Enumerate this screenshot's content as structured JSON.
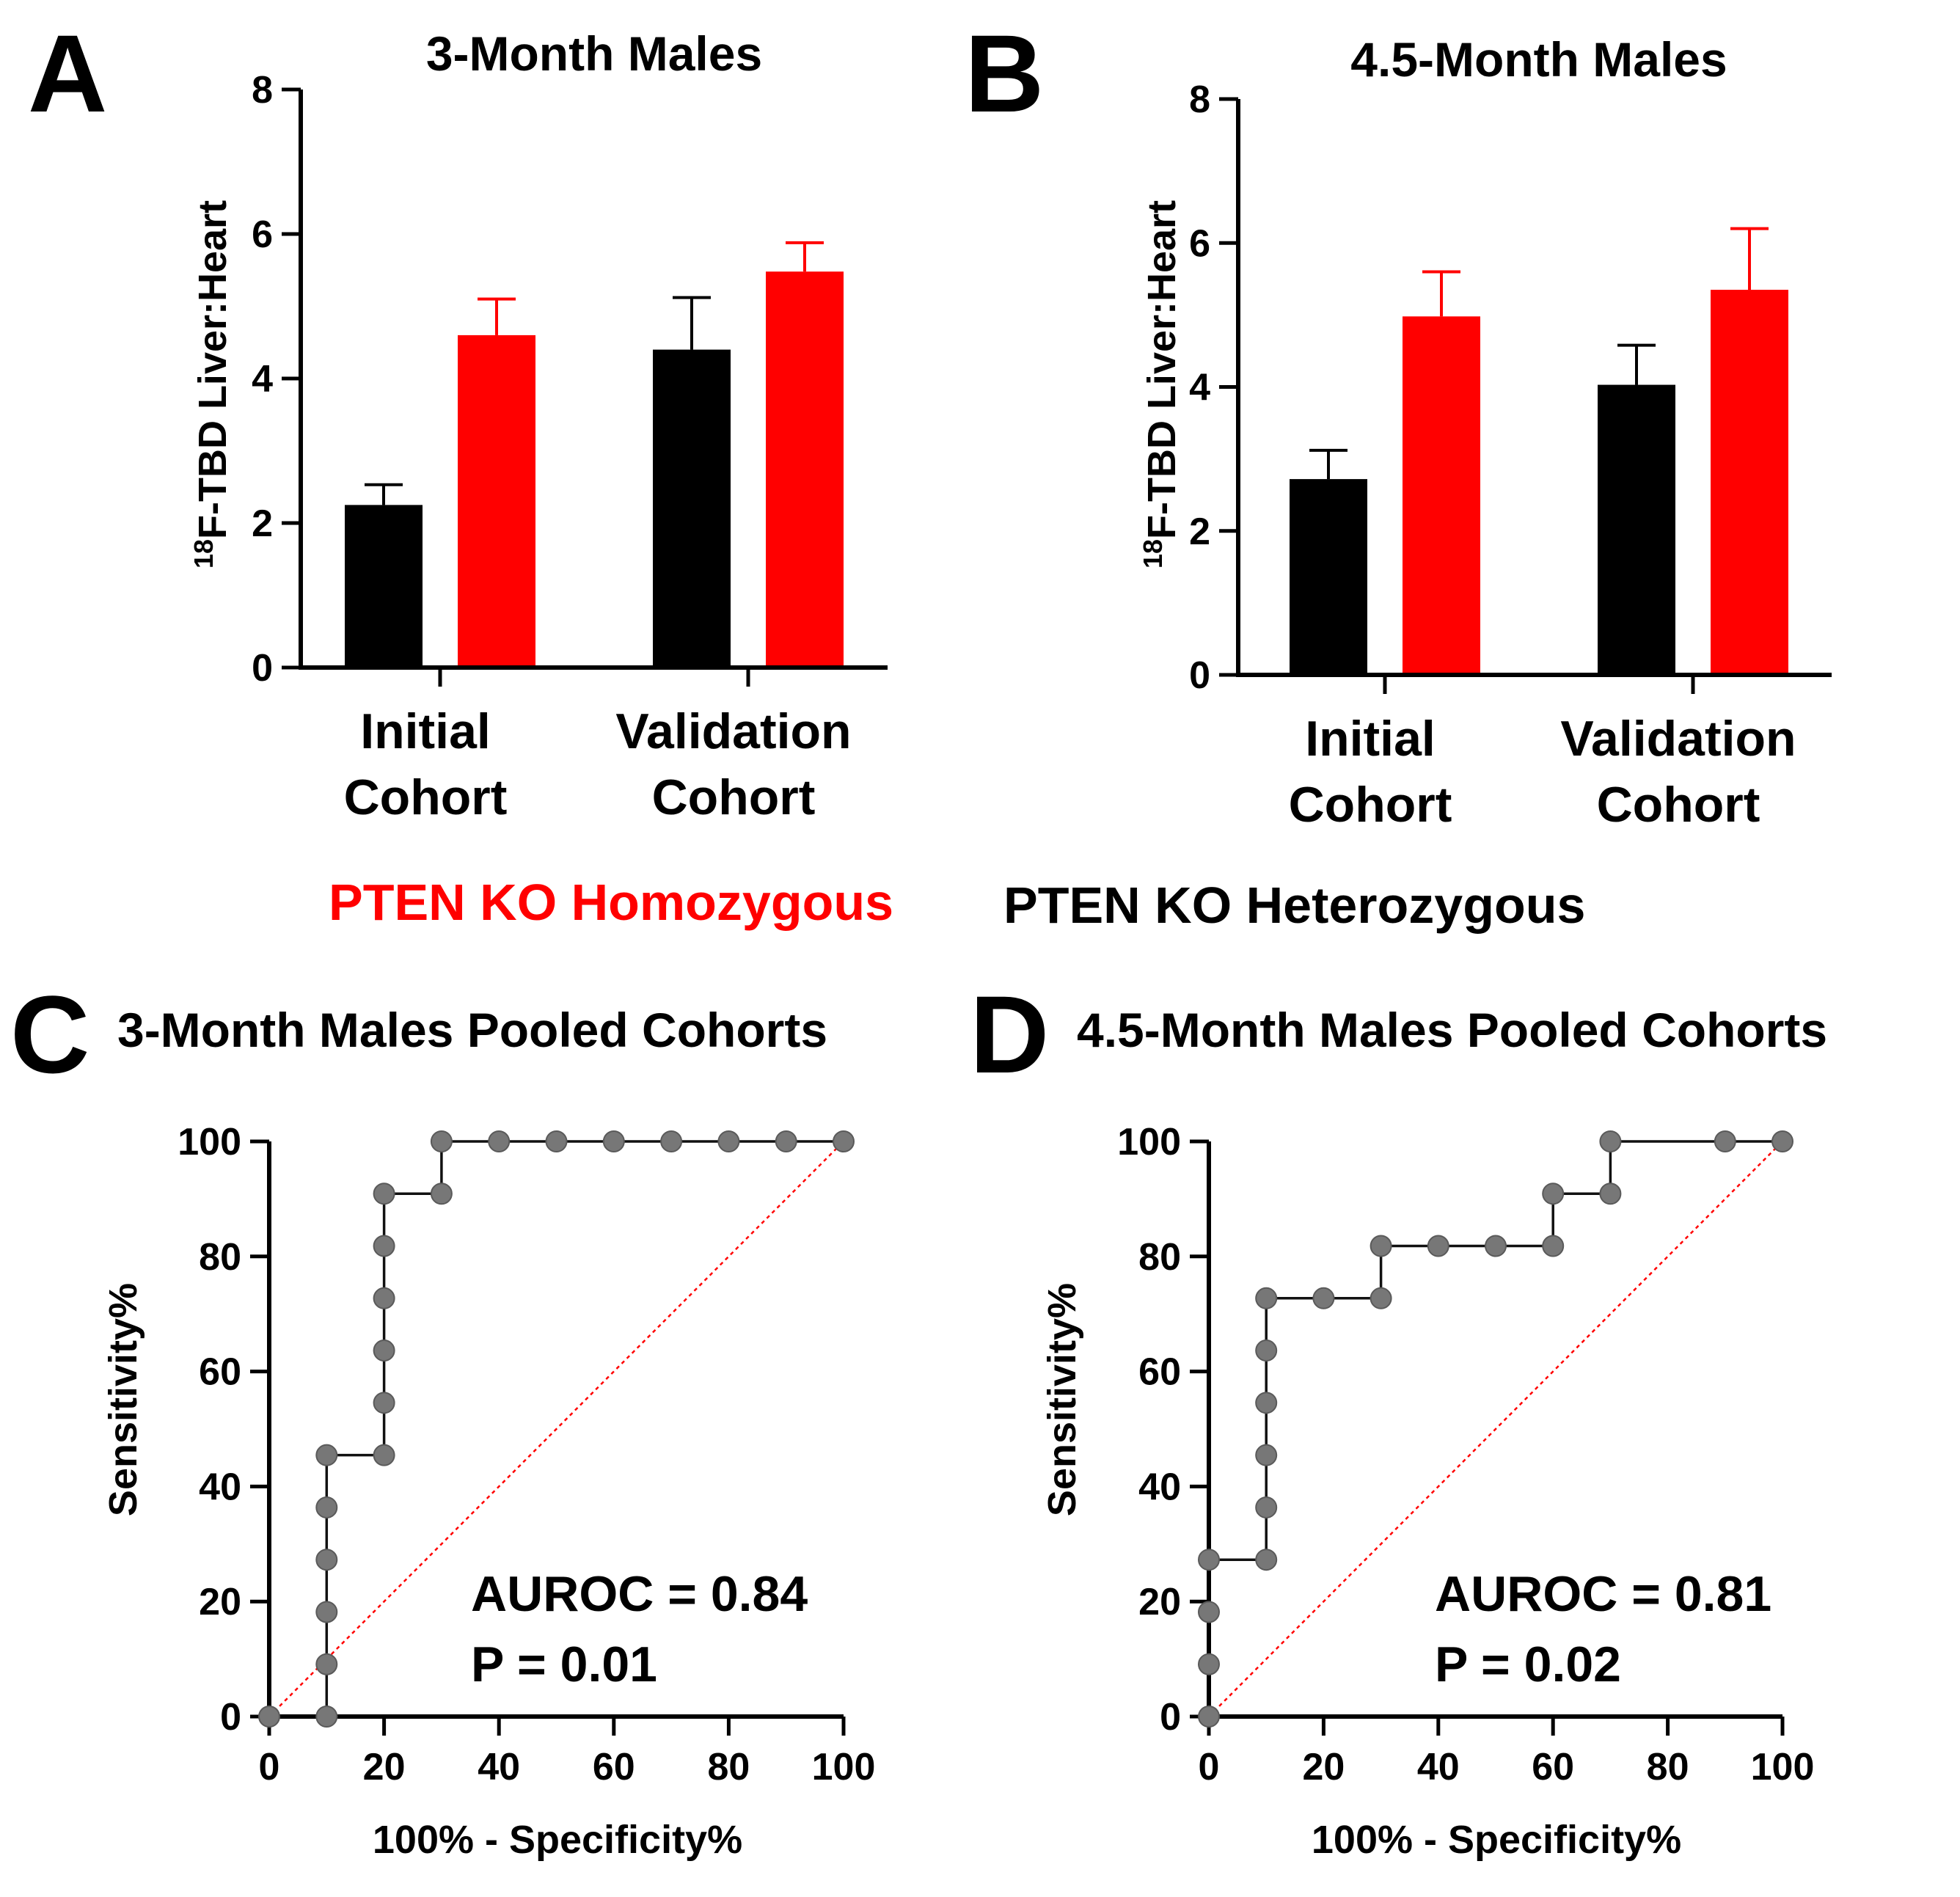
{
  "legend": {
    "homozygous_label": "PTEN KO Homozygous",
    "homozygous_color": "#ff0000",
    "heterozygous_label": "PTEN KO Heterozygous",
    "heterozygous_color": "#000000"
  },
  "chart_data": [
    {
      "panel": "A",
      "type": "bar",
      "title": "3-Month Males",
      "ylabel_sup": "18",
      "ylabel": "F-TBD Liver:Heart",
      "categories": [
        [
          "Initial",
          "Cohort"
        ],
        [
          "Validation",
          "Cohort"
        ]
      ],
      "ylim": [
        0,
        8
      ],
      "yticks": [
        "0",
        "2",
        "4",
        "6",
        "8"
      ],
      "series": [
        {
          "name": "PTEN KO Heterozygous",
          "color": "#000000",
          "values": [
            2.25,
            4.4
          ],
          "errors": [
            0.28,
            0.72
          ]
        },
        {
          "name": "PTEN KO Homozygous",
          "color": "#ff0000",
          "values": [
            4.6,
            5.48
          ],
          "errors": [
            0.5,
            0.4
          ]
        }
      ]
    },
    {
      "panel": "B",
      "type": "bar",
      "title": "4.5-Month Males",
      "ylabel_sup": "18",
      "ylabel": "F-TBD Liver:Heart",
      "categories": [
        [
          "Initial",
          "Cohort"
        ],
        [
          "Validation",
          "Cohort"
        ]
      ],
      "ylim": [
        0,
        8
      ],
      "yticks": [
        "0",
        "2",
        "4",
        "6",
        "8"
      ],
      "series": [
        {
          "name": "PTEN KO Heterozygous",
          "color": "#000000",
          "values": [
            2.72,
            4.03
          ],
          "errors": [
            0.4,
            0.55
          ]
        },
        {
          "name": "PTEN KO Homozygous",
          "color": "#ff0000",
          "values": [
            4.98,
            5.35
          ],
          "errors": [
            0.62,
            0.85
          ]
        }
      ]
    },
    {
      "panel": "C",
      "type": "line",
      "title": "3-Month Males Pooled Cohorts",
      "xlabel": "100% - Specificity%",
      "ylabel": "Sensitivity%",
      "xlim": [
        0,
        100
      ],
      "ylim": [
        0,
        100
      ],
      "xticks": [
        "0",
        "20",
        "40",
        "60",
        "80",
        "100"
      ],
      "yticks": [
        "0",
        "20",
        "40",
        "60",
        "80",
        "100"
      ],
      "roc_x": [
        0,
        10,
        10,
        10,
        10,
        10,
        10,
        20,
        20,
        20,
        20,
        20,
        20,
        30,
        30,
        40,
        50,
        60,
        70,
        80,
        90,
        100
      ],
      "roc_y": [
        0,
        0,
        9.09,
        18.18,
        27.27,
        36.36,
        45.45,
        45.45,
        54.55,
        63.64,
        72.73,
        81.82,
        90.91,
        90.91,
        100,
        100,
        100,
        100,
        100,
        100,
        100,
        100
      ],
      "reference_line": {
        "x": [
          0,
          100
        ],
        "y": [
          0,
          100
        ],
        "color": "#ff0000"
      },
      "annotation": [
        "AUROC = 0.84",
        "P = 0.01"
      ]
    },
    {
      "panel": "D",
      "type": "line",
      "title": "4.5-Month Males Pooled Cohorts",
      "xlabel": "100% - Specificity%",
      "ylabel": "Sensitivity%",
      "xlim": [
        0,
        100
      ],
      "ylim": [
        0,
        100
      ],
      "xticks": [
        "0",
        "20",
        "40",
        "60",
        "80",
        "100"
      ],
      "yticks": [
        "0",
        "20",
        "40",
        "60",
        "80",
        "100"
      ],
      "roc_x": [
        0,
        0,
        0,
        0,
        10,
        10,
        10,
        10,
        10,
        10,
        20,
        30,
        30,
        40,
        50,
        60,
        60,
        70,
        70,
        90,
        100
      ],
      "roc_y": [
        0,
        9.09,
        18.18,
        27.27,
        27.27,
        36.36,
        45.45,
        54.55,
        63.64,
        72.73,
        72.73,
        72.73,
        81.82,
        81.82,
        81.82,
        81.82,
        90.91,
        90.91,
        100,
        100,
        100
      ],
      "reference_line": {
        "x": [
          0,
          100
        ],
        "y": [
          0,
          100
        ],
        "color": "#ff0000"
      },
      "annotation": [
        "AUROC = 0.81",
        "P = 0.02"
      ]
    }
  ]
}
